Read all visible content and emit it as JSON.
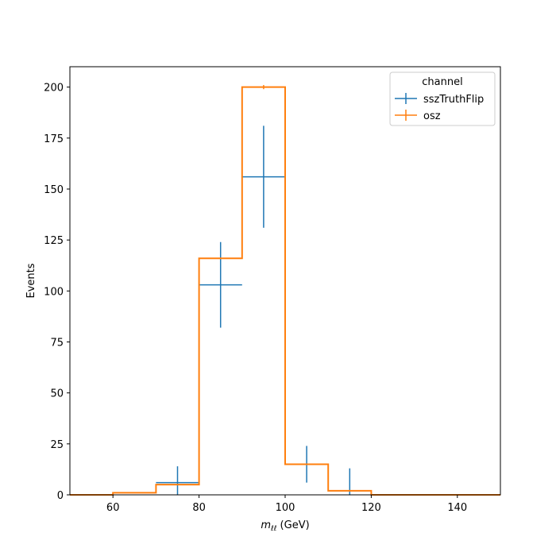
{
  "chart_data": {
    "type": "histogram",
    "xlabel_main": "m",
    "xlabel_sub": "ℓℓ",
    "xlabel_unit": " (GeV)",
    "ylabel": "Events",
    "xlim": [
      50,
      150
    ],
    "ylim": [
      0,
      210
    ],
    "xticks": [
      60,
      80,
      100,
      120,
      140
    ],
    "yticks": [
      0,
      25,
      50,
      75,
      100,
      125,
      150,
      175,
      200
    ],
    "bin_edges": [
      50,
      60,
      70,
      80,
      90,
      100,
      110,
      120,
      130,
      140,
      150
    ],
    "legend_title": "channel",
    "series": [
      {
        "name": "sszTruthFlip",
        "color": "#1f77b4",
        "style": "errorbar",
        "values": [
          0,
          0,
          6,
          103,
          156,
          15,
          2,
          0,
          0,
          0
        ],
        "errors": [
          0,
          0,
          8,
          21,
          25,
          9,
          11,
          0,
          0,
          0
        ]
      },
      {
        "name": "osz",
        "color": "#ff7f0e",
        "style": "step",
        "values": [
          0,
          1,
          5,
          116,
          200,
          15,
          2,
          0,
          0,
          0
        ],
        "errors": [
          0,
          0,
          0,
          0,
          1,
          0,
          0,
          0,
          0,
          0
        ]
      }
    ]
  }
}
